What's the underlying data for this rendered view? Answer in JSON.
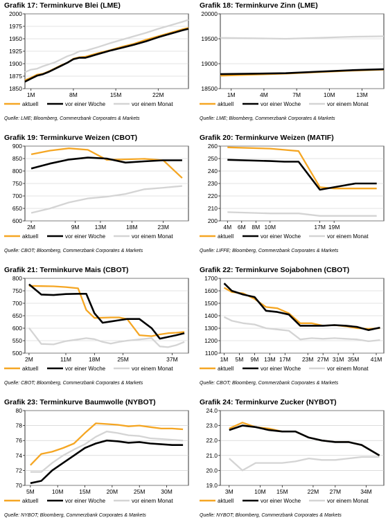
{
  "legend": {
    "current": "aktuell",
    "week": "vor einer Woche",
    "month": "vor einem Monat"
  },
  "colors": {
    "current": "#f5a623",
    "week": "#000000",
    "month": "#d4d4d4"
  },
  "chart_data": [
    {
      "type": "line",
      "title_prefix": "Grafik 17:",
      "title": "Terminkurve Blei (LME)",
      "source": "Quelle: LME; Bloomberg, Commerzbank Corporates & Markets",
      "ylim": [
        1850,
        2000
      ],
      "yticks": [
        1850,
        1875,
        1900,
        1925,
        1950,
        1975,
        2000
      ],
      "xlim": [
        0,
        27
      ],
      "xticks": [
        {
          "x": 1,
          "label": "1M"
        },
        {
          "x": 8,
          "label": "8M"
        },
        {
          "x": 15,
          "label": "15M"
        },
        {
          "x": 22,
          "label": "22M"
        }
      ],
      "series": [
        {
          "key": "current",
          "x": [
            0,
            1,
            2,
            3,
            4,
            5,
            6,
            7,
            8,
            9,
            10,
            12,
            14,
            16,
            18,
            20,
            22,
            24,
            26,
            27
          ],
          "values": [
            1867,
            1872,
            1878,
            1880,
            1885,
            1891,
            1897,
            1902,
            1910,
            1913,
            1914,
            1921,
            1927,
            1934,
            1940,
            1948,
            1955,
            1962,
            1969,
            1972
          ]
        },
        {
          "key": "week",
          "x": [
            0,
            1,
            2,
            3,
            4,
            5,
            6,
            7,
            8,
            9,
            10,
            12,
            14,
            16,
            18,
            20,
            22,
            24,
            26,
            27
          ],
          "values": [
            1864,
            1870,
            1876,
            1879,
            1884,
            1890,
            1896,
            1902,
            1909,
            1912,
            1912,
            1919,
            1926,
            1932,
            1938,
            1945,
            1953,
            1960,
            1967,
            1970
          ]
        },
        {
          "key": "month",
          "x": [
            0,
            1,
            2,
            3,
            4,
            5,
            6,
            7,
            8,
            9,
            10,
            12,
            14,
            16,
            18,
            20,
            22,
            24,
            26,
            27
          ],
          "values": [
            1883,
            1888,
            1890,
            1895,
            1899,
            1903,
            1909,
            1915,
            1919,
            1925,
            1926,
            1933,
            1941,
            1948,
            1955,
            1962,
            1970,
            1977,
            1984,
            1988
          ]
        }
      ]
    },
    {
      "type": "line",
      "title_prefix": "Grafik 18:",
      "title": "Terminkurve Zinn (LME)",
      "source": "Quelle: LME; Bloomberg, Commerzbank Corporates & Markets",
      "ylim": [
        18500,
        20000
      ],
      "yticks": [
        18500,
        19000,
        19500,
        20000
      ],
      "xlim": [
        0,
        15
      ],
      "xticks": [
        {
          "x": 1,
          "label": "1M"
        },
        {
          "x": 4,
          "label": "4M"
        },
        {
          "x": 7,
          "label": "7M"
        },
        {
          "x": 10,
          "label": "10M"
        },
        {
          "x": 13,
          "label": "13M"
        }
      ],
      "series": [
        {
          "key": "current",
          "x": [
            0,
            3,
            6,
            9,
            12,
            15
          ],
          "values": [
            18760,
            18780,
            18800,
            18830,
            18860,
            18880
          ]
        },
        {
          "key": "week",
          "x": [
            0,
            3,
            6,
            9,
            12,
            15
          ],
          "values": [
            18790,
            18800,
            18810,
            18840,
            18870,
            18890
          ]
        },
        {
          "key": "month",
          "x": [
            0,
            3,
            6,
            9,
            12,
            15
          ],
          "values": [
            19520,
            19510,
            19500,
            19520,
            19540,
            19550
          ]
        }
      ]
    },
    {
      "type": "line",
      "title_prefix": "Grafik 19:",
      "title": "Terminkurve Weizen (CBOT)",
      "source": "Quelle: CBOT; Bloomberg, Commerzbank Corporates & Markets",
      "ylim": [
        600,
        900
      ],
      "yticks": [
        600,
        650,
        700,
        750,
        800,
        850,
        900
      ],
      "xlim": [
        1,
        27
      ],
      "xticks": [
        {
          "x": 2,
          "label": "2M"
        },
        {
          "x": 9,
          "label": "9M"
        },
        {
          "x": 13,
          "label": "13M"
        },
        {
          "x": 18,
          "label": "18M"
        },
        {
          "x": 23,
          "label": "23M"
        }
      ],
      "series": [
        {
          "key": "current",
          "x": [
            2,
            5,
            8,
            11,
            14,
            17,
            20,
            23,
            26
          ],
          "values": [
            867,
            882,
            891,
            885,
            845,
            847,
            849,
            843,
            772
          ]
        },
        {
          "key": "week",
          "x": [
            2,
            5,
            8,
            11,
            14,
            17,
            20,
            23,
            26
          ],
          "values": [
            810,
            830,
            846,
            854,
            850,
            834,
            839,
            843,
            843
          ]
        },
        {
          "key": "month",
          "x": [
            2,
            5,
            8,
            11,
            14,
            17,
            20,
            23,
            26
          ],
          "values": [
            632,
            650,
            674,
            690,
            697,
            708,
            727,
            733,
            740
          ]
        }
      ]
    },
    {
      "type": "line",
      "title_prefix": "Grafik 20:",
      "title": "Terminkurve Weizen (MATIF)",
      "source": "Quelle: LIFFE; Bloomberg, Commerzbank Corporates & Markets",
      "ylim": [
        200,
        260
      ],
      "yticks": [
        200,
        210,
        220,
        230,
        240,
        250,
        260
      ],
      "xlim": [
        3,
        26
      ],
      "xticks": [
        {
          "x": 4,
          "label": "4M"
        },
        {
          "x": 6,
          "label": "6M"
        },
        {
          "x": 8,
          "label": "8M"
        },
        {
          "x": 10,
          "label": "10M"
        },
        {
          "x": 17,
          "label": "17M"
        },
        {
          "x": 19,
          "label": "19M"
        }
      ],
      "series": [
        {
          "key": "current",
          "x": [
            4,
            10,
            12,
            14,
            17,
            19,
            22,
            25
          ],
          "values": [
            259,
            258,
            257,
            256,
            227,
            226,
            226,
            226
          ]
        },
        {
          "key": "week",
          "x": [
            4,
            10,
            12,
            14,
            17,
            19,
            22,
            25
          ],
          "values": [
            249,
            248,
            247.5,
            247.5,
            225,
            227,
            230,
            230
          ]
        },
        {
          "key": "month",
          "x": [
            4,
            10,
            12,
            14,
            17,
            19,
            22,
            25
          ],
          "values": [
            207,
            206,
            206,
            206,
            204,
            204,
            204,
            204
          ]
        }
      ]
    },
    {
      "type": "line",
      "title_prefix": "Grafik 21:",
      "title": "Terminkurve Mais (CBOT)",
      "source": "Quelle: CBOT; Bloomberg, Commerzbank Corporates & Markets",
      "ylim": [
        500,
        800
      ],
      "yticks": [
        500,
        550,
        600,
        650,
        700,
        750,
        800
      ],
      "xlim": [
        1,
        41
      ],
      "xticks": [
        {
          "x": 2,
          "label": "2M"
        },
        {
          "x": 11,
          "label": "11M"
        },
        {
          "x": 18,
          "label": "18M"
        },
        {
          "x": 25,
          "label": "25M"
        },
        {
          "x": 37,
          "label": "37M"
        }
      ],
      "series": [
        {
          "key": "current",
          "x": [
            2,
            5,
            8,
            11,
            14,
            16,
            18,
            20,
            22,
            24,
            26,
            29,
            32,
            34,
            36,
            38,
            40
          ],
          "values": [
            770,
            769,
            768,
            765,
            760,
            673,
            641,
            642,
            643,
            643,
            637,
            572,
            568,
            575,
            580,
            582,
            585
          ]
        },
        {
          "key": "week",
          "x": [
            2,
            5,
            8,
            11,
            14,
            16,
            18,
            20,
            22,
            24,
            26,
            29,
            32,
            34,
            36,
            38,
            40
          ],
          "values": [
            776,
            735,
            733,
            737,
            738,
            738,
            660,
            622,
            627,
            632,
            637,
            637,
            600,
            558,
            565,
            572,
            580
          ]
        },
        {
          "key": "month",
          "x": [
            2,
            5,
            8,
            11,
            14,
            16,
            18,
            20,
            22,
            24,
            26,
            29,
            32,
            34,
            36,
            38,
            40
          ],
          "values": [
            601,
            537,
            535,
            548,
            555,
            560,
            556,
            545,
            538,
            545,
            550,
            555,
            560,
            527,
            524,
            532,
            545
          ]
        }
      ]
    },
    {
      "type": "line",
      "title_prefix": "Grafik 22:",
      "title": "Terminkurve Sojabohnen (CBOT)",
      "source": "Quelle: CBOT; Bloomberg, Commerzbank Corporates & Markets",
      "ylim": [
        1100,
        1700
      ],
      "yticks": [
        1100,
        1200,
        1300,
        1400,
        1500,
        1600,
        1700
      ],
      "xlim": [
        0,
        43
      ],
      "xticks": [
        {
          "x": 1,
          "label": "1M"
        },
        {
          "x": 5,
          "label": "5M"
        },
        {
          "x": 9,
          "label": "9M"
        },
        {
          "x": 13,
          "label": "13M"
        },
        {
          "x": 17,
          "label": "17M"
        },
        {
          "x": 23,
          "label": "23M"
        },
        {
          "x": 27,
          "label": "27M"
        },
        {
          "x": 31,
          "label": "31M"
        },
        {
          "x": 35,
          "label": "35M"
        },
        {
          "x": 41,
          "label": "41M"
        }
      ],
      "series": [
        {
          "key": "current",
          "x": [
            1,
            3,
            6,
            9,
            12,
            15,
            18,
            21,
            24,
            27,
            30,
            33,
            36,
            39,
            42
          ],
          "values": [
            1625,
            1590,
            1580,
            1535,
            1470,
            1460,
            1420,
            1340,
            1340,
            1320,
            1325,
            1315,
            1300,
            1295,
            1300
          ]
        },
        {
          "key": "week",
          "x": [
            1,
            3,
            6,
            9,
            12,
            15,
            18,
            21,
            24,
            27,
            30,
            33,
            36,
            39,
            42
          ],
          "values": [
            1660,
            1600,
            1570,
            1550,
            1440,
            1430,
            1410,
            1320,
            1320,
            1320,
            1325,
            1320,
            1310,
            1285,
            1305
          ]
        },
        {
          "key": "month",
          "x": [
            1,
            3,
            6,
            9,
            12,
            15,
            18,
            21,
            24,
            27,
            30,
            33,
            36,
            39,
            42
          ],
          "values": [
            1390,
            1360,
            1340,
            1330,
            1300,
            1290,
            1280,
            1210,
            1220,
            1215,
            1220,
            1215,
            1210,
            1195,
            1205
          ]
        }
      ]
    },
    {
      "type": "line",
      "title_prefix": "Grafik 23:",
      "title": "Terminkurve Baumwolle (NYBOT)",
      "source": "Quelle: NYBOT; Bloomberg, Commerzbank Corporates & Markets",
      "ylim": [
        70,
        80
      ],
      "yticks": [
        70,
        72,
        74,
        76,
        78,
        80
      ],
      "xlim": [
        4,
        34
      ],
      "xticks": [
        {
          "x": 5,
          "label": "5M"
        },
        {
          "x": 10,
          "label": "10M"
        },
        {
          "x": 15,
          "label": "15M"
        },
        {
          "x": 20,
          "label": "20M"
        },
        {
          "x": 25,
          "label": "25M"
        },
        {
          "x": 30,
          "label": "30M"
        }
      ],
      "series": [
        {
          "key": "current",
          "x": [
            5,
            7,
            9,
            11,
            13,
            15,
            17,
            19,
            21,
            23,
            25,
            27,
            29,
            31,
            33
          ],
          "values": [
            72.7,
            74.2,
            74.5,
            75.0,
            75.6,
            77.0,
            78.3,
            78.2,
            78.1,
            77.9,
            78.0,
            77.8,
            77.6,
            77.6,
            77.5
          ]
        },
        {
          "key": "week",
          "x": [
            5,
            7,
            9,
            11,
            13,
            15,
            17,
            19,
            21,
            23,
            25,
            27,
            29,
            31,
            33
          ],
          "values": [
            70.3,
            70.6,
            72.0,
            73.0,
            74.0,
            75.0,
            75.6,
            76.0,
            75.9,
            75.7,
            75.8,
            75.6,
            75.5,
            75.4,
            75.4
          ]
        },
        {
          "key": "month",
          "x": [
            5,
            7,
            9,
            11,
            13,
            15,
            17,
            19,
            21,
            23,
            25,
            27,
            29,
            31,
            33
          ],
          "values": [
            71.8,
            71.8,
            73.0,
            74.0,
            74.8,
            75.5,
            76.5,
            77.2,
            77.0,
            76.7,
            76.6,
            76.3,
            76.2,
            76.1,
            76.0
          ]
        }
      ]
    },
    {
      "type": "line",
      "title_prefix": "Grafik 24:",
      "title": "Terminkurve Zucker (NYBOT)",
      "source": "Quelle: NYBOT; Bloomberg, Commerzbank Corporates & Markets",
      "ylim": [
        19.0,
        24.0
      ],
      "yticks": [
        "19.0",
        "20.0",
        "21.0",
        "22.0",
        "23.0",
        "24.0"
      ],
      "xlim": [
        1,
        38
      ],
      "xticks": [
        {
          "x": 3,
          "label": "3M"
        },
        {
          "x": 10,
          "label": "10M"
        },
        {
          "x": 15,
          "label": "15M"
        },
        {
          "x": 22,
          "label": "22M"
        },
        {
          "x": 27,
          "label": "27M"
        },
        {
          "x": 34,
          "label": "34M"
        }
      ],
      "series": [
        {
          "key": "current",
          "x": [
            3,
            6,
            9,
            12,
            15,
            18,
            21,
            24,
            27,
            30,
            33,
            37
          ],
          "values": [
            22.8,
            23.2,
            22.9,
            22.8,
            22.6,
            22.6,
            22.2,
            22.0,
            21.9,
            21.9,
            21.7,
            21.0
          ]
        },
        {
          "key": "week",
          "x": [
            3,
            6,
            9,
            12,
            15,
            18,
            21,
            24,
            27,
            30,
            33,
            37
          ],
          "values": [
            22.7,
            23.0,
            22.9,
            22.7,
            22.6,
            22.6,
            22.2,
            22.0,
            21.9,
            21.9,
            21.7,
            21.0
          ]
        },
        {
          "key": "month",
          "x": [
            3,
            6,
            9,
            12,
            15,
            18,
            21,
            24,
            27,
            30,
            33,
            37
          ],
          "values": [
            20.8,
            20.0,
            20.5,
            20.5,
            20.5,
            20.6,
            20.8,
            20.7,
            20.7,
            20.8,
            20.9,
            20.9
          ]
        }
      ]
    }
  ]
}
